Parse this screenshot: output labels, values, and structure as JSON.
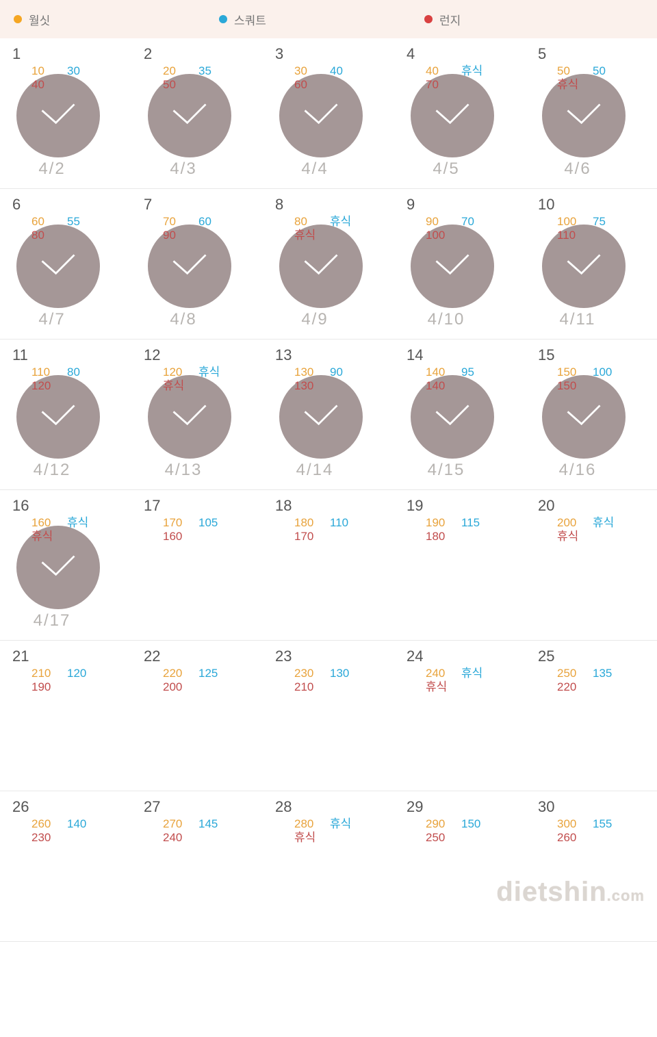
{
  "legend": {
    "items": [
      {
        "label": "월싯",
        "color": "#f5a623"
      },
      {
        "label": "스쿼트",
        "color": "#2aa8d8"
      },
      {
        "label": "런지",
        "color": "#d94141"
      }
    ],
    "bg": "#fbf1ec"
  },
  "colors": {
    "wallsit": "#e8a33c",
    "squat": "#2aa8d8",
    "lunge": "#c14d4d",
    "circle": "#a59797",
    "check": "#ffffff",
    "date": "#b7b4b1",
    "border": "#e8e8e8"
  },
  "days": [
    {
      "n": "1",
      "wallsit": "10",
      "squat": "30",
      "lunge": "40",
      "done": true,
      "date": "4/2"
    },
    {
      "n": "2",
      "wallsit": "20",
      "squat": "35",
      "lunge": "50",
      "done": true,
      "date": "4/3"
    },
    {
      "n": "3",
      "wallsit": "30",
      "squat": "40",
      "lunge": "60",
      "done": true,
      "date": "4/4"
    },
    {
      "n": "4",
      "wallsit": "40",
      "squat": "휴식",
      "lunge": "70",
      "done": true,
      "date": "4/5"
    },
    {
      "n": "5",
      "wallsit": "50",
      "squat": "50",
      "lunge": "휴식",
      "done": true,
      "date": "4/6"
    },
    {
      "n": "6",
      "wallsit": "60",
      "squat": "55",
      "lunge": "80",
      "done": true,
      "date": "4/7"
    },
    {
      "n": "7",
      "wallsit": "70",
      "squat": "60",
      "lunge": "90",
      "done": true,
      "date": "4/8"
    },
    {
      "n": "8",
      "wallsit": "80",
      "squat": "휴식",
      "lunge": "휴식",
      "done": true,
      "date": "4/9"
    },
    {
      "n": "9",
      "wallsit": "90",
      "squat": "70",
      "lunge": "100",
      "done": true,
      "date": "4/10"
    },
    {
      "n": "10",
      "wallsit": "100",
      "squat": "75",
      "lunge": "110",
      "done": true,
      "date": "4/11"
    },
    {
      "n": "11",
      "wallsit": "110",
      "squat": "80",
      "lunge": "120",
      "done": true,
      "date": "4/12"
    },
    {
      "n": "12",
      "wallsit": "120",
      "squat": "휴식",
      "lunge": "휴식",
      "done": true,
      "date": "4/13"
    },
    {
      "n": "13",
      "wallsit": "130",
      "squat": "90",
      "lunge": "130",
      "done": true,
      "date": "4/14"
    },
    {
      "n": "14",
      "wallsit": "140",
      "squat": "95",
      "lunge": "140",
      "done": true,
      "date": "4/15"
    },
    {
      "n": "15",
      "wallsit": "150",
      "squat": "100",
      "lunge": "150",
      "done": true,
      "date": "4/16"
    },
    {
      "n": "16",
      "wallsit": "160",
      "squat": "휴식",
      "lunge": "휴식",
      "done": true,
      "date": "4/17"
    },
    {
      "n": "17",
      "wallsit": "170",
      "squat": "105",
      "lunge": "160",
      "done": false,
      "date": ""
    },
    {
      "n": "18",
      "wallsit": "180",
      "squat": "110",
      "lunge": "170",
      "done": false,
      "date": ""
    },
    {
      "n": "19",
      "wallsit": "190",
      "squat": "115",
      "lunge": "180",
      "done": false,
      "date": ""
    },
    {
      "n": "20",
      "wallsit": "200",
      "squat": "휴식",
      "lunge": "휴식",
      "done": false,
      "date": ""
    },
    {
      "n": "21",
      "wallsit": "210",
      "squat": "120",
      "lunge": "190",
      "done": false,
      "date": ""
    },
    {
      "n": "22",
      "wallsit": "220",
      "squat": "125",
      "lunge": "200",
      "done": false,
      "date": ""
    },
    {
      "n": "23",
      "wallsit": "230",
      "squat": "130",
      "lunge": "210",
      "done": false,
      "date": ""
    },
    {
      "n": "24",
      "wallsit": "240",
      "squat": "휴식",
      "lunge": "휴식",
      "done": false,
      "date": ""
    },
    {
      "n": "25",
      "wallsit": "250",
      "squat": "135",
      "lunge": "220",
      "done": false,
      "date": ""
    },
    {
      "n": "26",
      "wallsit": "260",
      "squat": "140",
      "lunge": "230",
      "done": false,
      "date": ""
    },
    {
      "n": "27",
      "wallsit": "270",
      "squat": "145",
      "lunge": "240",
      "done": false,
      "date": ""
    },
    {
      "n": "28",
      "wallsit": "280",
      "squat": "휴식",
      "lunge": "휴식",
      "done": false,
      "date": ""
    },
    {
      "n": "29",
      "wallsit": "290",
      "squat": "150",
      "lunge": "250",
      "done": false,
      "date": ""
    },
    {
      "n": "30",
      "wallsit": "300",
      "squat": "155",
      "lunge": "260",
      "done": false,
      "date": ""
    }
  ],
  "watermark": {
    "text": "dietshin",
    "tld": ".com"
  }
}
